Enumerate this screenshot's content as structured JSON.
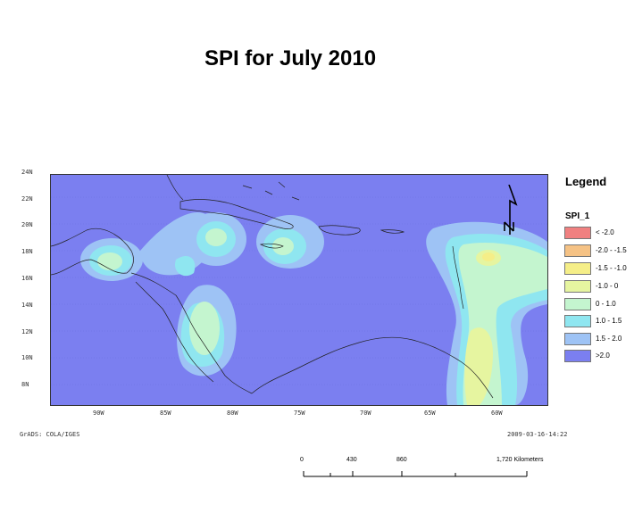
{
  "title": "SPI for  July 2010",
  "map": {
    "lat_labels": [
      "24N",
      "22N",
      "20N",
      "18N",
      "16N",
      "14N",
      "12N",
      "10N",
      "8N"
    ],
    "lon_labels": [
      "90W",
      "85W",
      "80W",
      "75W",
      "70W",
      "65W",
      "60W"
    ],
    "background_color": "#7b7ff0"
  },
  "legend": {
    "title": "Legend",
    "field": "SPI_1",
    "items": [
      {
        "label": "< -2.0",
        "color": "#f08080"
      },
      {
        "label": "-2.0 - -1.5",
        "color": "#f5c285"
      },
      {
        "label": "-1.5 - -1.0",
        "color": "#f5ee88"
      },
      {
        "label": "-1.0 - 0",
        "color": "#e6f5a0"
      },
      {
        "label": "0 - 1.0",
        "color": "#c4f5cf"
      },
      {
        "label": "1.0 - 1.5",
        "color": "#8fe6f0"
      },
      {
        "label": "1.5 - 2.0",
        "color": "#9ec3f5"
      },
      {
        "label": ">2.0",
        "color": "#7b7ff0"
      }
    ]
  },
  "footer": {
    "credit": "GrADS: COLA/IGES",
    "timestamp": "2009-03-16-14:22"
  },
  "scale": {
    "labels": [
      "0",
      "430",
      "860",
      "1,720 Kilometers"
    ]
  },
  "north_arrow_label": "N"
}
